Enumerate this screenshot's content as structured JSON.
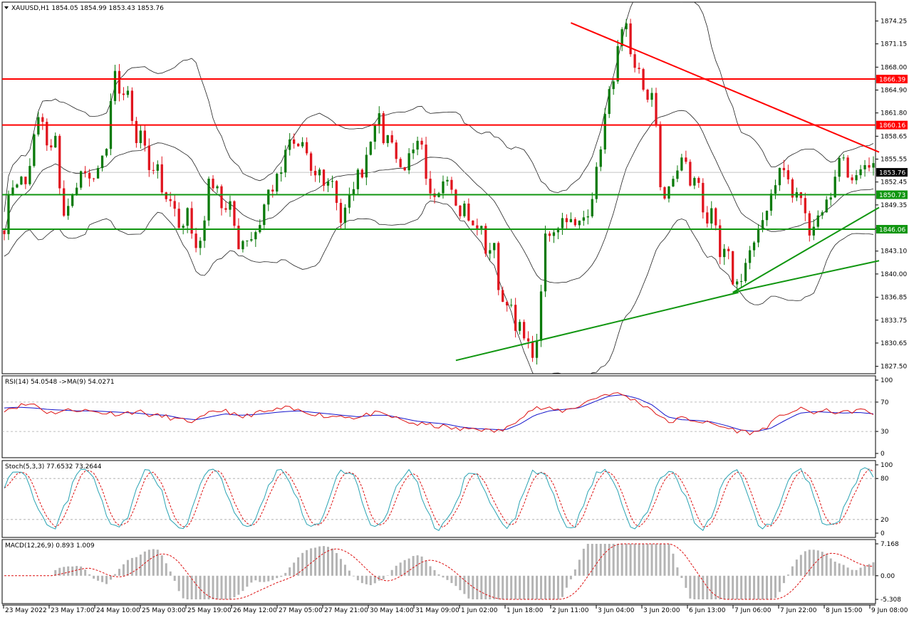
{
  "colors": {
    "bull": "#0a7a0a",
    "bear": "#e0141e",
    "resistance": "#ff0000",
    "support": "#109610",
    "rsi": "#dd1111",
    "rsi_ma": "#1515cc",
    "stoch_main": "#2aa3b3",
    "stoch_signal": "#dd1111",
    "macd_hist": "#b4b4b4",
    "macd_signal": "#dd1111",
    "band": "#222222",
    "level_dotted": "#a8a8a8"
  },
  "chart_data": [
    {
      "type": "candlestick",
      "title": "XAUUSD,H1",
      "ohlc_readout": "1854.05 1854.99 1853.43 1853.76",
      "ylim": [
        1826.5,
        1876.8
      ],
      "y_ticks": [
        "1874.25",
        "1871.15",
        "1868.00",
        "1864.90",
        "1861.80",
        "1858.65",
        "1855.55",
        "1852.45",
        "1849.35",
        "1846.20",
        "1843.10",
        "1840.00",
        "1836.85",
        "1833.75",
        "1830.65",
        "1827.50"
      ],
      "x_ticks": [
        "23 May 2022",
        "23 May 17:00",
        "24 May 10:00",
        "25 May 03:00",
        "25 May 19:00",
        "26 May 12:00",
        "27 May 05:00",
        "27 May 21:00",
        "30 May 14:00",
        "31 May 09:00",
        "1 Jun 02:00",
        "1 Jun 18:00",
        "2 Jun 11:00",
        "3 Jun 04:00",
        "3 Jun 20:00",
        "6 Jun 13:00",
        "7 Jun 06:00",
        "7 Jun 22:00",
        "8 Jun 15:00",
        "9 Jun 08:00"
      ],
      "horizontal_levels": [
        {
          "label": "1866.39",
          "value": 1866.39,
          "kind": "resistance"
        },
        {
          "label": "1860.16",
          "value": 1860.16,
          "kind": "resistance"
        },
        {
          "label": "1850.73",
          "value": 1850.73,
          "kind": "support"
        },
        {
          "label": "1846.06",
          "value": 1846.06,
          "kind": "support"
        }
      ],
      "current_price": {
        "label": "1853.76",
        "value": 1853.76
      },
      "trendlines": [
        {
          "kind": "resistance",
          "from": {
            "x": "2 Jun 15:00",
            "y": 1874.0
          },
          "to": {
            "x": "9 Jun 09:00",
            "y": 1856.5
          }
        },
        {
          "kind": "support",
          "from": {
            "x": "1 Jun 01:00",
            "y": 1828.3
          },
          "to": {
            "x": "7 Jun 05:00",
            "y": 1837.5
          }
        },
        {
          "kind": "support",
          "from": {
            "x": "7 Jun 05:00",
            "y": 1837.5
          },
          "to": {
            "x": "9 Jun 09:00",
            "y": 1849.0
          }
        },
        {
          "kind": "support",
          "from": {
            "x": "7 Jun 05:00",
            "y": 1837.5
          },
          "to": {
            "x": "9 Jun 09:00",
            "y": 1841.8
          }
        }
      ],
      "price_path": [
        [
          1846.5,
          1852
        ],
        [
          1853,
          1852
        ],
        [
          1858,
          1862
        ],
        [
          1856,
          1858
        ],
        [
          1848,
          1849
        ],
        [
          1853,
          1854
        ],
        [
          1851,
          1856
        ],
        [
          1856,
          1868
        ],
        [
          1863,
          1864
        ],
        [
          1858,
          1859
        ],
        [
          1854,
          1855
        ],
        [
          1849,
          1850
        ],
        [
          1845,
          1850
        ],
        [
          1843,
          1845
        ],
        [
          1852,
          1853
        ],
        [
          1848,
          1849
        ],
        [
          1844,
          1845
        ],
        [
          1845,
          1847
        ],
        [
          1851,
          1852
        ],
        [
          1854,
          1858
        ],
        [
          1857,
          1858
        ],
        [
          1853,
          1854
        ],
        [
          1852,
          1853
        ],
        [
          1847,
          1849
        ],
        [
          1853,
          1854
        ],
        [
          1858,
          1862
        ],
        [
          1858,
          1859
        ],
        [
          1854,
          1855
        ],
        [
          1856,
          1858
        ],
        [
          1850,
          1851
        ],
        [
          1853,
          1854
        ],
        [
          1848,
          1849
        ],
        [
          1846,
          1847
        ],
        [
          1843,
          1844
        ],
        [
          1836,
          1837
        ],
        [
          1832,
          1833
        ],
        [
          1829,
          1830
        ],
        [
          1845,
          1846
        ],
        [
          1847,
          1848
        ],
        [
          1846,
          1847
        ],
        [
          1849,
          1853
        ],
        [
          1860,
          1865
        ],
        [
          1870,
          1874
        ],
        [
          1867,
          1868
        ],
        [
          1863,
          1864
        ],
        [
          1850,
          1851
        ],
        [
          1854,
          1856
        ],
        [
          1852,
          1853
        ],
        [
          1847,
          1848
        ],
        [
          1842,
          1843
        ],
        [
          1838,
          1840
        ],
        [
          1843,
          1844
        ],
        [
          1848,
          1851
        ],
        [
          1854,
          1854
        ],
        [
          1850,
          1851
        ],
        [
          1846,
          1847
        ],
        [
          1849,
          1850
        ],
        [
          1855,
          1856
        ],
        [
          1852,
          1853
        ],
        [
          1854,
          1854
        ]
      ]
    },
    {
      "type": "line",
      "title": "RSI(14) 54.0548 ->MA(9) 54.0271",
      "ylim": [
        0,
        100
      ],
      "y_ticks": [
        "100",
        "70",
        "30",
        "0"
      ],
      "levels": [
        70,
        30
      ],
      "series": [],
      "path_rsi": [
        60,
        65,
        68,
        55,
        58,
        60,
        57,
        55,
        54,
        58,
        52,
        50,
        45,
        44,
        55,
        60,
        48,
        55,
        57,
        62,
        58,
        55,
        50,
        52,
        48,
        55,
        52,
        45,
        40,
        38,
        36,
        32,
        35,
        30,
        32,
        50,
        62,
        60,
        58,
        65,
        75,
        82,
        80,
        70,
        60,
        42,
        48,
        45,
        40,
        35,
        30,
        28,
        40,
        55,
        60,
        56,
        58,
        55,
        60,
        54
      ],
      "path_ma": [
        62,
        63,
        62,
        60,
        59,
        58,
        58,
        57,
        56,
        55,
        53,
        52,
        48,
        46,
        50,
        54,
        52,
        53,
        55,
        57,
        58,
        56,
        54,
        52,
        50,
        52,
        52,
        48,
        44,
        42,
        40,
        36,
        34,
        33,
        32,
        40,
        52,
        58,
        60,
        62,
        70,
        78,
        80,
        75,
        66,
        50,
        46,
        45,
        43,
        38,
        32,
        30,
        34,
        45,
        55,
        57,
        56,
        55,
        56,
        54
      ]
    },
    {
      "type": "line",
      "title": "Stoch(5,3,3) 77.6532 73.2644",
      "ylim": [
        0,
        100
      ],
      "y_ticks": [
        "100",
        "80",
        "20",
        "0"
      ],
      "levels": [
        80,
        20
      ]
    },
    {
      "type": "bar",
      "title": "MACD(12,26,9) 0.893 1.009",
      "ylim": [
        -5.308,
        7.168
      ],
      "y_ticks": [
        "7.168",
        "0.00",
        "-5.308"
      ]
    }
  ]
}
